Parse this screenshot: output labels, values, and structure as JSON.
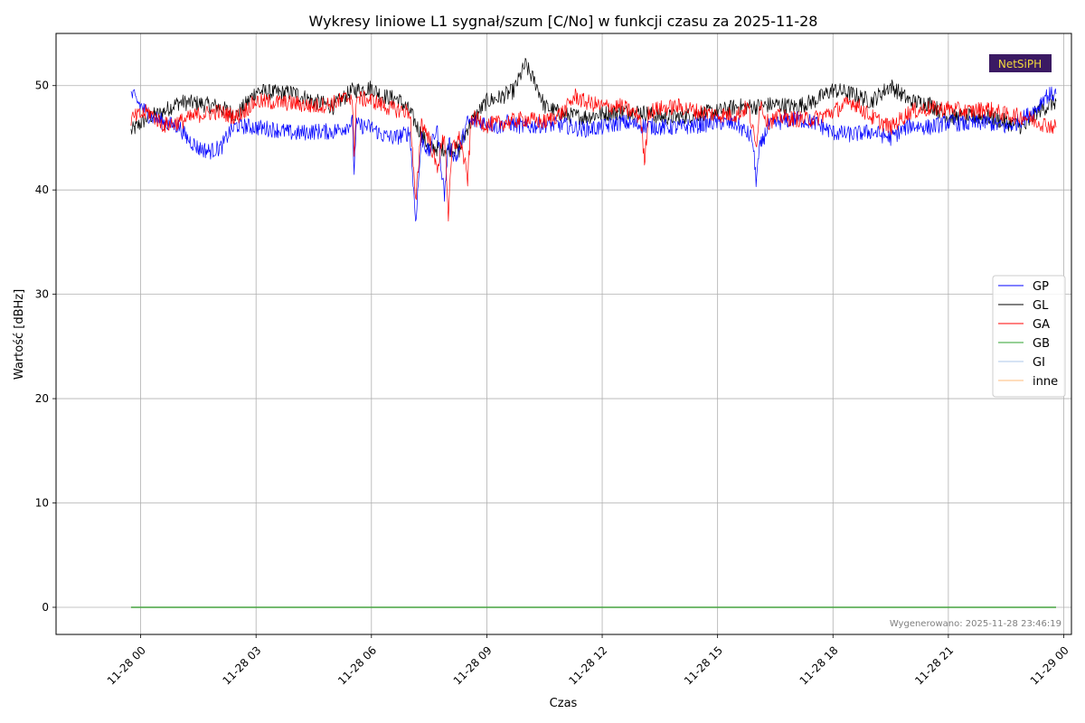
{
  "chart_data": {
    "type": "line",
    "title": "Wykresy liniowe L1 sygnał/szum [C/No] w funkcji czasu za 2025-11-28",
    "xlabel": "Czas",
    "ylabel": "Wartość [dBHz]",
    "ylim": [
      -2.6,
      55
    ],
    "xlim_hours": [
      -2.2,
      24.2
    ],
    "grid": true,
    "legend_position": "center-right",
    "x_ticks": [
      {
        "h": 0,
        "label": "11-28 00"
      },
      {
        "h": 3,
        "label": "11-28 03"
      },
      {
        "h": 6,
        "label": "11-28 06"
      },
      {
        "h": 9,
        "label": "11-28 09"
      },
      {
        "h": 12,
        "label": "11-28 12"
      },
      {
        "h": 15,
        "label": "11-28 15"
      },
      {
        "h": 18,
        "label": "11-28 18"
      },
      {
        "h": 21,
        "label": "11-28 21"
      },
      {
        "h": 24,
        "label": "11-29 00"
      }
    ],
    "y_ticks": [
      0,
      10,
      20,
      30,
      40,
      50
    ],
    "time_range_hours": [
      -0.25,
      23.8
    ],
    "series": [
      {
        "name": "GP",
        "color": "#0000ff",
        "points": [
          [
            -0.25,
            49.2
          ],
          [
            0.2,
            47.2
          ],
          [
            0.7,
            46.3
          ],
          [
            1.0,
            46.1
          ],
          [
            1.2,
            45.0
          ],
          [
            1.5,
            44.0
          ],
          [
            1.8,
            43.7
          ],
          [
            2.1,
            44.1
          ],
          [
            2.3,
            45.5
          ],
          [
            2.5,
            46.2
          ],
          [
            3.0,
            46.0
          ],
          [
            3.5,
            45.8
          ],
          [
            4.0,
            45.4
          ],
          [
            4.5,
            45.6
          ],
          [
            5.0,
            45.6
          ],
          [
            5.3,
            46.0
          ],
          [
            5.5,
            46.5
          ],
          [
            5.55,
            41.8
          ],
          [
            5.6,
            46.2
          ],
          [
            6.0,
            46.0
          ],
          [
            6.3,
            45.2
          ],
          [
            6.6,
            45.0
          ],
          [
            7.0,
            45.5
          ],
          [
            7.15,
            37.0
          ],
          [
            7.3,
            45.0
          ],
          [
            7.5,
            43.5
          ],
          [
            7.7,
            46.0
          ],
          [
            7.9,
            39.5
          ],
          [
            8.0,
            44.5
          ],
          [
            8.2,
            43.0
          ],
          [
            8.5,
            46.5
          ],
          [
            9.0,
            46.5
          ],
          [
            9.3,
            46.0
          ],
          [
            9.5,
            46.5
          ],
          [
            10.0,
            46.0
          ],
          [
            10.5,
            46.3
          ],
          [
            11.0,
            46.2
          ],
          [
            11.5,
            45.8
          ],
          [
            12.0,
            46.0
          ],
          [
            12.5,
            46.5
          ],
          [
            13.0,
            46.2
          ],
          [
            13.5,
            46.0
          ],
          [
            14.0,
            46.0
          ],
          [
            14.5,
            46.2
          ],
          [
            15.0,
            46.5
          ],
          [
            15.5,
            46.3
          ],
          [
            15.9,
            45.0
          ],
          [
            16.0,
            41.0
          ],
          [
            16.1,
            44.0
          ],
          [
            16.3,
            46.0
          ],
          [
            16.6,
            46.5
          ],
          [
            17.0,
            46.8
          ],
          [
            17.5,
            46.5
          ],
          [
            18.0,
            45.5
          ],
          [
            18.5,
            45.3
          ],
          [
            19.0,
            45.6
          ],
          [
            19.5,
            45.0
          ],
          [
            20.0,
            46.2
          ],
          [
            20.5,
            46.0
          ],
          [
            21.0,
            46.5
          ],
          [
            21.5,
            46.3
          ],
          [
            22.0,
            46.5
          ],
          [
            22.5,
            46.0
          ],
          [
            22.8,
            46.5
          ],
          [
            23.0,
            47.0
          ],
          [
            23.3,
            47.8
          ],
          [
            23.5,
            49.0
          ],
          [
            23.8,
            49.2
          ]
        ]
      },
      {
        "name": "GL",
        "color": "#000000",
        "points": [
          [
            -0.25,
            45.6
          ],
          [
            0.2,
            47.0
          ],
          [
            0.5,
            47.3
          ],
          [
            0.8,
            48.0
          ],
          [
            1.0,
            48.4
          ],
          [
            1.5,
            48.3
          ],
          [
            2.0,
            48.0
          ],
          [
            2.5,
            47.2
          ],
          [
            2.8,
            48.5
          ],
          [
            3.0,
            49.5
          ],
          [
            3.5,
            49.3
          ],
          [
            4.0,
            49.3
          ],
          [
            4.5,
            48.5
          ],
          [
            5.0,
            48.0
          ],
          [
            5.5,
            49.5
          ],
          [
            6.0,
            49.8
          ],
          [
            6.3,
            49.0
          ],
          [
            6.7,
            48.7
          ],
          [
            7.0,
            47.5
          ],
          [
            7.2,
            46.0
          ],
          [
            7.5,
            44.0
          ],
          [
            8.0,
            44.0
          ],
          [
            8.3,
            43.8
          ],
          [
            8.5,
            46.0
          ],
          [
            9.0,
            48.5
          ],
          [
            9.3,
            48.8
          ],
          [
            9.7,
            49.5
          ],
          [
            10.0,
            52.0
          ],
          [
            10.3,
            50.0
          ],
          [
            10.5,
            48.0
          ],
          [
            11.0,
            47.2
          ],
          [
            11.5,
            47.0
          ],
          [
            12.0,
            47.3
          ],
          [
            12.5,
            47.5
          ],
          [
            13.0,
            47.5
          ],
          [
            13.5,
            47.0
          ],
          [
            14.0,
            47.0
          ],
          [
            14.5,
            47.3
          ],
          [
            15.0,
            47.5
          ],
          [
            15.5,
            48.0
          ],
          [
            16.0,
            48.0
          ],
          [
            16.5,
            48.2
          ],
          [
            17.0,
            48.0
          ],
          [
            17.5,
            48.5
          ],
          [
            18.0,
            49.6
          ],
          [
            18.5,
            49.2
          ],
          [
            19.0,
            48.5
          ],
          [
            19.5,
            50.0
          ],
          [
            20.0,
            48.5
          ],
          [
            20.5,
            48.3
          ],
          [
            21.0,
            47.0
          ],
          [
            21.5,
            47.0
          ],
          [
            22.0,
            47.0
          ],
          [
            22.5,
            46.5
          ],
          [
            23.0,
            46.0
          ],
          [
            23.3,
            47.5
          ],
          [
            23.8,
            48.5
          ]
        ]
      },
      {
        "name": "GA",
        "color": "#ff0000",
        "points": [
          [
            -0.25,
            46.8
          ],
          [
            0.2,
            47.5
          ],
          [
            0.6,
            46.2
          ],
          [
            1.0,
            46.5
          ],
          [
            1.5,
            47.2
          ],
          [
            2.0,
            47.5
          ],
          [
            2.5,
            47.0
          ],
          [
            3.0,
            48.5
          ],
          [
            3.5,
            48.4
          ],
          [
            4.0,
            48.3
          ],
          [
            4.5,
            48.0
          ],
          [
            5.0,
            48.3
          ],
          [
            5.5,
            49.0
          ],
          [
            5.55,
            42.5
          ],
          [
            5.6,
            48.8
          ],
          [
            6.0,
            48.6
          ],
          [
            6.5,
            47.8
          ],
          [
            7.0,
            47.5
          ],
          [
            7.15,
            38.5
          ],
          [
            7.3,
            46.5
          ],
          [
            7.5,
            45.0
          ],
          [
            7.7,
            42.0
          ],
          [
            7.9,
            45.5
          ],
          [
            8.0,
            37.5
          ],
          [
            8.1,
            44.0
          ],
          [
            8.3,
            45.0
          ],
          [
            8.5,
            41.0
          ],
          [
            8.6,
            47.0
          ],
          [
            9.0,
            46.2
          ],
          [
            9.5,
            46.5
          ],
          [
            10.0,
            46.8
          ],
          [
            10.5,
            46.5
          ],
          [
            11.0,
            47.5
          ],
          [
            11.3,
            49.0
          ],
          [
            11.5,
            48.5
          ],
          [
            12.0,
            48.0
          ],
          [
            12.5,
            48.0
          ],
          [
            13.0,
            47.0
          ],
          [
            13.1,
            42.5
          ],
          [
            13.2,
            47.5
          ],
          [
            13.5,
            47.8
          ],
          [
            14.0,
            48.0
          ],
          [
            14.5,
            47.5
          ],
          [
            15.0,
            47.2
          ],
          [
            15.5,
            47.2
          ],
          [
            15.8,
            48.0
          ],
          [
            16.0,
            44.0
          ],
          [
            16.1,
            48.5
          ],
          [
            16.3,
            46.5
          ],
          [
            16.6,
            47.0
          ],
          [
            17.0,
            46.8
          ],
          [
            17.5,
            46.8
          ],
          [
            18.0,
            47.5
          ],
          [
            18.5,
            48.5
          ],
          [
            19.0,
            47.0
          ],
          [
            19.5,
            46.0
          ],
          [
            20.0,
            47.5
          ],
          [
            20.5,
            47.8
          ],
          [
            21.0,
            47.8
          ],
          [
            21.5,
            47.5
          ],
          [
            22.0,
            47.8
          ],
          [
            22.5,
            47.2
          ],
          [
            23.0,
            47.0
          ],
          [
            23.5,
            46.3
          ],
          [
            23.8,
            46.0
          ]
        ]
      },
      {
        "name": "GB",
        "color": "#2ca02c",
        "points": [
          [
            -0.25,
            0
          ],
          [
            23.8,
            0
          ]
        ]
      },
      {
        "name": "GI",
        "color": "#aec7e8",
        "points": [
          [
            -0.25,
            0
          ],
          [
            23.8,
            0
          ]
        ]
      },
      {
        "name": "inne",
        "color": "#ffbb78",
        "points": [
          [
            -0.25,
            0
          ],
          [
            23.8,
            0
          ]
        ]
      }
    ],
    "annotations": {
      "generated_label": "Wygenerowano: 2025-11-28 23:46:19",
      "logo_text": "NetSiPH"
    }
  }
}
